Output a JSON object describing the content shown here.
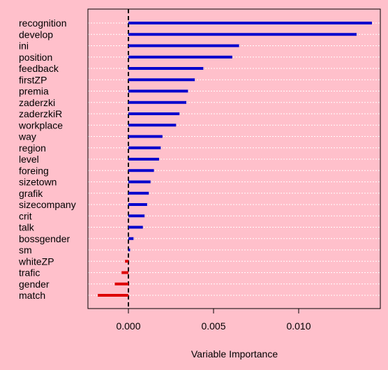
{
  "chart_data": {
    "type": "bar",
    "orientation": "horizontal",
    "xlabel": "Variable Importance",
    "ylabel": "",
    "xlim": [
      -0.0023,
      0.0147
    ],
    "xticks": [
      0.0,
      0.005,
      0.01
    ],
    "xtick_labels": [
      "0.000",
      "0.005",
      "0.010"
    ],
    "grid": "horizontal-dashed-white",
    "zero_line": "dashed-black",
    "colors": {
      "background": "#ffc0cb",
      "positive": "#0000cd",
      "negative": "#dd0000",
      "axis": "#000000",
      "grid": "#ffffff"
    },
    "categories": [
      "recognition",
      "develop",
      "ini",
      "position",
      "feedback",
      "firstZP",
      "premia",
      "zaderzki",
      "zaderzkiR",
      "workplace",
      "way",
      "region",
      "level",
      "foreing",
      "sizetown",
      "grafik",
      "sizecompany",
      "crit",
      "talk",
      "bossgender",
      "sm",
      "whiteZP",
      "trafic",
      "gender",
      "match"
    ],
    "values": [
      0.0143,
      0.0134,
      0.0065,
      0.0061,
      0.0044,
      0.0039,
      0.0035,
      0.0034,
      0.003,
      0.0028,
      0.002,
      0.0019,
      0.0018,
      0.0015,
      0.0013,
      0.0012,
      0.0011,
      0.00095,
      0.00085,
      0.0003,
      0.0001,
      -0.0002,
      -0.0004,
      -0.0008,
      -0.0018
    ]
  }
}
